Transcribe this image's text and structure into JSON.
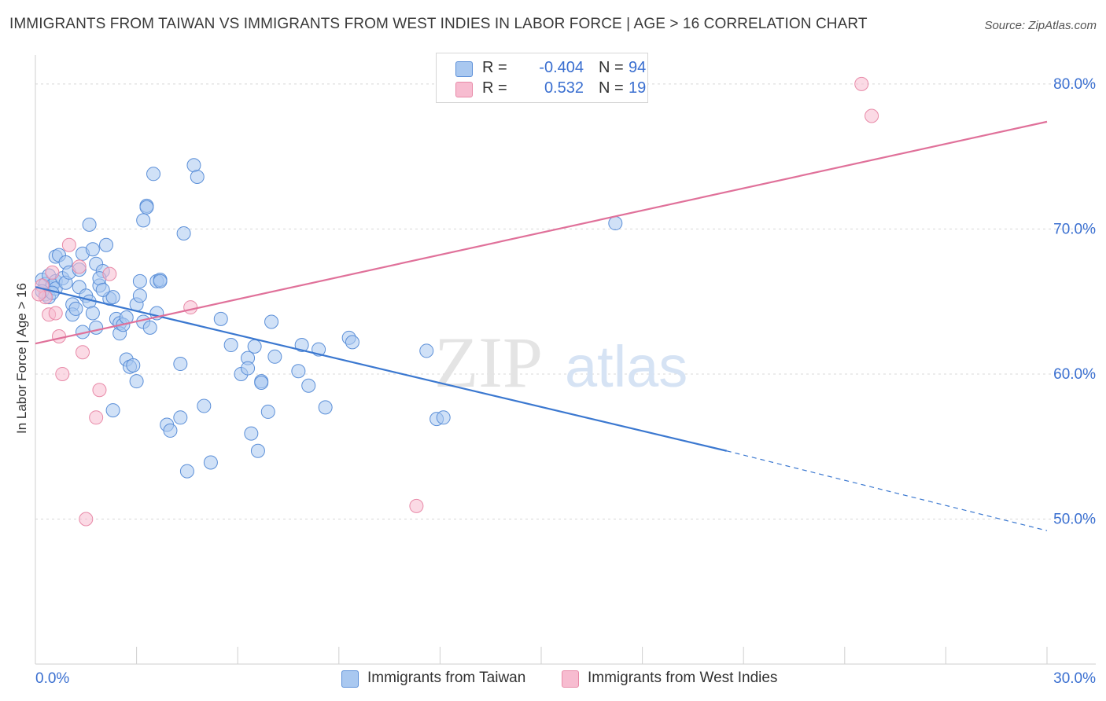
{
  "title": "IMMIGRANTS FROM TAIWAN VS IMMIGRANTS FROM WEST INDIES IN LABOR FORCE | AGE > 16 CORRELATION CHART",
  "source": "Source: ZipAtlas.com",
  "watermark": {
    "zip": "ZIP",
    "atlas": "atlas"
  },
  "legend_stats": [
    {
      "r_label": "R =",
      "r_value": "-0.404",
      "n_label": "N =",
      "n_value": "94"
    },
    {
      "r_label": "R =",
      "r_value": "0.532",
      "n_label": "N =",
      "n_value": "19"
    }
  ],
  "colors": {
    "series1_fill": "#a9c8f0",
    "series1_stroke": "#5b8fd8",
    "series1_line": "#3b78d0",
    "series2_fill": "#f7bcd0",
    "series2_stroke": "#e88aa8",
    "series2_line": "#e0719a",
    "tick_label": "#3a6fd0",
    "grid": "#d8d8d8"
  },
  "chart_data": {
    "type": "scatter",
    "xlabel": "",
    "ylabel": "In Labor Force | Age > 16",
    "xlim": [
      0,
      30
    ],
    "ylim": [
      40,
      82
    ],
    "x_tick_labels": [
      "0.0%",
      "30.0%"
    ],
    "y_ticks": [
      50,
      60,
      70,
      80
    ],
    "y_tick_labels": [
      "50.0%",
      "60.0%",
      "70.0%",
      "80.0%"
    ],
    "grid": "horizontal dashed",
    "legend_placement": "bottom-center",
    "series": [
      {
        "name": "Immigrants from Taiwan",
        "points": [
          [
            0.2,
            66.5
          ],
          [
            0.3,
            66.2
          ],
          [
            0.3,
            65.5
          ],
          [
            0.4,
            66.8
          ],
          [
            0.5,
            66.1
          ],
          [
            0.4,
            65.3
          ],
          [
            0.6,
            66.4
          ],
          [
            0.6,
            65.9
          ],
          [
            0.6,
            68.1
          ],
          [
            0.7,
            68.2
          ],
          [
            0.8,
            66.6
          ],
          [
            0.9,
            67.7
          ],
          [
            0.9,
            66.3
          ],
          [
            1.0,
            67.0
          ],
          [
            1.1,
            64.8
          ],
          [
            1.1,
            64.1
          ],
          [
            1.2,
            64.5
          ],
          [
            1.3,
            67.2
          ],
          [
            1.3,
            66.0
          ],
          [
            1.4,
            68.3
          ],
          [
            1.4,
            62.9
          ],
          [
            1.5,
            65.4
          ],
          [
            1.6,
            65.0
          ],
          [
            1.6,
            70.3
          ],
          [
            1.7,
            64.2
          ],
          [
            1.7,
            68.6
          ],
          [
            1.8,
            67.6
          ],
          [
            1.9,
            66.1
          ],
          [
            2.0,
            67.1
          ],
          [
            1.9,
            66.6
          ],
          [
            2.1,
            68.9
          ],
          [
            2.2,
            65.2
          ],
          [
            2.3,
            65.3
          ],
          [
            2.3,
            57.5
          ],
          [
            2.4,
            63.8
          ],
          [
            2.5,
            63.5
          ],
          [
            2.5,
            62.8
          ],
          [
            2.6,
            63.4
          ],
          [
            2.7,
            63.9
          ],
          [
            2.7,
            61.0
          ],
          [
            2.8,
            60.5
          ],
          [
            2.9,
            60.6
          ],
          [
            3.0,
            59.5
          ],
          [
            3.0,
            64.8
          ],
          [
            3.1,
            65.4
          ],
          [
            3.1,
            66.4
          ],
          [
            3.2,
            63.6
          ],
          [
            3.2,
            70.6
          ],
          [
            3.3,
            71.6
          ],
          [
            3.3,
            71.5
          ],
          [
            3.4,
            63.2
          ],
          [
            3.5,
            73.8
          ],
          [
            3.6,
            66.4
          ],
          [
            3.7,
            66.5
          ],
          [
            3.7,
            66.4
          ],
          [
            3.9,
            56.5
          ],
          [
            4.0,
            56.1
          ],
          [
            4.3,
            57.0
          ],
          [
            4.3,
            60.7
          ],
          [
            4.4,
            69.7
          ],
          [
            4.5,
            53.3
          ],
          [
            4.7,
            74.4
          ],
          [
            4.8,
            73.6
          ],
          [
            5.0,
            57.8
          ],
          [
            5.2,
            53.9
          ],
          [
            5.5,
            63.8
          ],
          [
            5.8,
            62.0
          ],
          [
            6.1,
            60.0
          ],
          [
            6.3,
            61.1
          ],
          [
            6.3,
            60.4
          ],
          [
            6.4,
            55.9
          ],
          [
            6.5,
            61.9
          ],
          [
            6.6,
            54.7
          ],
          [
            6.7,
            59.5
          ],
          [
            6.7,
            59.4
          ],
          [
            6.9,
            57.4
          ],
          [
            7.0,
            63.6
          ],
          [
            7.1,
            61.2
          ],
          [
            7.8,
            60.2
          ],
          [
            7.9,
            62.0
          ],
          [
            8.1,
            59.2
          ],
          [
            8.4,
            61.7
          ],
          [
            8.6,
            57.7
          ],
          [
            9.3,
            62.5
          ],
          [
            9.4,
            62.2
          ],
          [
            11.6,
            61.6
          ],
          [
            11.9,
            56.9
          ],
          [
            12.1,
            57.0
          ],
          [
            17.2,
            70.4
          ],
          [
            0.2,
            65.7
          ],
          [
            0.5,
            65.6
          ],
          [
            1.8,
            63.2
          ],
          [
            2.0,
            65.8
          ],
          [
            3.6,
            64.2
          ]
        ],
        "trend": {
          "x0": 0,
          "y0": 66.0,
          "x1": 20.5,
          "y1": 54.7,
          "dashed_to_x": 30,
          "dashed_to_y": 49.2
        }
      },
      {
        "name": "Immigrants from West Indies",
        "points": [
          [
            0.2,
            66.1
          ],
          [
            0.3,
            65.3
          ],
          [
            0.4,
            64.1
          ],
          [
            0.5,
            67.0
          ],
          [
            0.6,
            64.2
          ],
          [
            0.7,
            62.6
          ],
          [
            0.8,
            60.0
          ],
          [
            1.0,
            68.9
          ],
          [
            1.3,
            67.4
          ],
          [
            1.4,
            61.5
          ],
          [
            1.5,
            50.0
          ],
          [
            1.8,
            57.0
          ],
          [
            1.9,
            58.9
          ],
          [
            2.2,
            66.9
          ],
          [
            4.6,
            64.6
          ],
          [
            11.3,
            50.9
          ],
          [
            24.5,
            80.0
          ],
          [
            24.8,
            77.8
          ],
          [
            0.1,
            65.5
          ]
        ],
        "trend": {
          "x0": 0,
          "y0": 62.1,
          "x1": 30,
          "y1": 77.4
        }
      }
    ]
  }
}
